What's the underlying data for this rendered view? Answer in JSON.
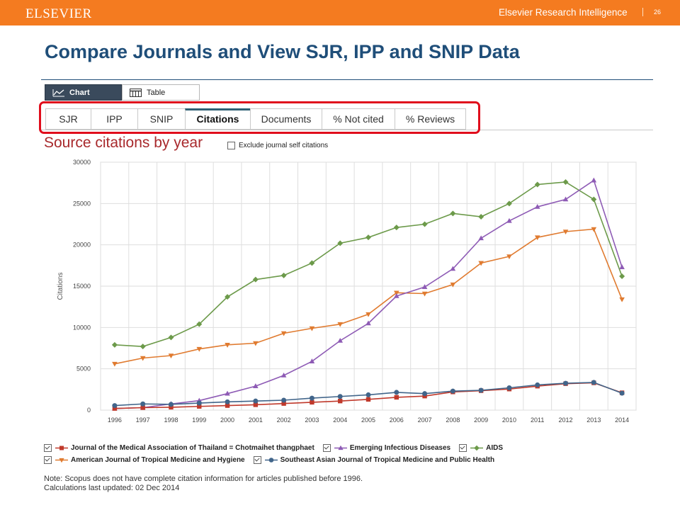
{
  "header": {
    "logo": "ELSEVIER",
    "product": "Elsevier Research Intelligence",
    "page_number": "26",
    "brand_color": "#f47b20"
  },
  "slide_title": "Compare Journals and View SJR, IPP and SNIP Data",
  "view_toggle": {
    "chart_label": "Chart",
    "table_label": "Table",
    "selected": "Chart"
  },
  "tabs": [
    {
      "label": "SJR",
      "active": false
    },
    {
      "label": "IPP",
      "active": false
    },
    {
      "label": "SNIP",
      "active": false
    },
    {
      "label": "Citations",
      "active": true
    },
    {
      "label": "Documents",
      "active": false
    },
    {
      "label": "% Not cited",
      "active": false
    },
    {
      "label": "% Reviews",
      "active": false
    }
  ],
  "panel": {
    "title": "Source citations by year",
    "exclude_self_citations_label": "Exclude journal self citations",
    "exclude_self_citations_checked": false
  },
  "chart_data": {
    "type": "line",
    "ylabel": "Citations",
    "xlabel": "",
    "ylim": [
      0,
      30000
    ],
    "yticks": [
      0,
      5000,
      10000,
      15000,
      20000,
      25000,
      30000
    ],
    "x": [
      "1996",
      "1997",
      "1998",
      "1999",
      "2000",
      "2001",
      "2002",
      "2003",
      "2004",
      "2005",
      "2006",
      "2007",
      "2008",
      "2009",
      "2010",
      "2011",
      "2012",
      "2013",
      "2014"
    ],
    "grid": true,
    "legend_position": "bottom",
    "series": [
      {
        "name": "Journal of the Medical Association of Thailand = Chotmaihet thangphaet",
        "color": "#c0392b",
        "marker": "square",
        "values": [
          200,
          300,
          350,
          450,
          550,
          650,
          800,
          950,
          1100,
          1300,
          1550,
          1700,
          2200,
          2350,
          2550,
          2900,
          3200,
          3300,
          2100
        ]
      },
      {
        "name": "Emerging Infectious Diseases",
        "color": "#8e5bb5",
        "marker": "triangle-up",
        "values": [
          200,
          300,
          750,
          1150,
          2000,
          2900,
          4200,
          5900,
          8400,
          10500,
          13800,
          14900,
          17100,
          20800,
          22900,
          24600,
          25500,
          27800,
          17300
        ]
      },
      {
        "name": "AIDS",
        "color": "#6c9a4a",
        "marker": "diamond",
        "values": [
          7900,
          7700,
          8800,
          10400,
          13700,
          15800,
          16300,
          17800,
          20200,
          20900,
          22100,
          22500,
          23800,
          23400,
          25000,
          27300,
          27600,
          25500,
          16200
        ]
      },
      {
        "name": "American Journal of Tropical Medicine and Hygiene",
        "color": "#e07b30",
        "marker": "triangle-down",
        "values": [
          5600,
          6300,
          6600,
          7400,
          7900,
          8100,
          9300,
          9900,
          10400,
          11600,
          14200,
          14100,
          15200,
          17800,
          18600,
          20900,
          21600,
          21900,
          13400
        ]
      },
      {
        "name": "Southeast Asian Journal of Tropical Medicine and Public Health",
        "color": "#41658a",
        "marker": "circle",
        "values": [
          550,
          750,
          700,
          850,
          1000,
          1100,
          1200,
          1450,
          1650,
          1850,
          2150,
          2000,
          2300,
          2400,
          2700,
          3050,
          3250,
          3350,
          2050
        ]
      }
    ]
  },
  "notes": {
    "line1": "Note: Scopus does not have complete citation information for articles published before 1996.",
    "line2": "Calculations last updated: 02 Dec 2014"
  }
}
